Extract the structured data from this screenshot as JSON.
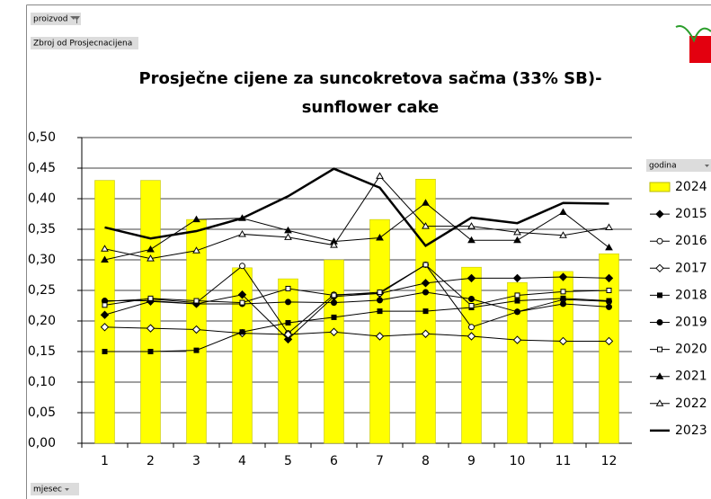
{
  "chart_data": {
    "type": "combo",
    "filter_button": "proizvod",
    "value_field": "Zbroj od Prosjecnacijena",
    "title": [
      "Prosječne cijene za suncokretova sačma (33% SB)-",
      "sunflower cake"
    ],
    "legend_title": "godina",
    "axis_field": "mjesec",
    "categories": [
      "1",
      "2",
      "3",
      "4",
      "5",
      "6",
      "7",
      "8",
      "9",
      "10",
      "11",
      "12"
    ],
    "ylim": [
      0,
      0.5
    ],
    "yticks": [
      {
        "value": 0,
        "label": "0,00"
      },
      {
        "value": 0.05,
        "label": "0,05"
      },
      {
        "value": 0.1,
        "label": "0,10"
      },
      {
        "value": 0.15,
        "label": "0,15"
      },
      {
        "value": 0.2,
        "label": "0,20"
      },
      {
        "value": 0.25,
        "label": "0,25"
      },
      {
        "value": 0.3,
        "label": "0,30"
      },
      {
        "value": 0.35,
        "label": "0,35"
      },
      {
        "value": 0.4,
        "label": "0,40"
      },
      {
        "value": 0.45,
        "label": "0,45"
      },
      {
        "value": 0.5,
        "label": "0,50"
      }
    ],
    "grid": true,
    "legend": "right",
    "series": [
      {
        "name": "2024",
        "type": "bar",
        "color": "#ffff00",
        "values": [
          0.43,
          0.43,
          0.366,
          0.287,
          0.269,
          0.3,
          0.366,
          0.432,
          0.288,
          0.263,
          0.281,
          0.31
        ]
      },
      {
        "name": "2015",
        "type": "line",
        "color": "#000000",
        "marker": "diamond",
        "filled": true,
        "values": [
          0.21,
          0.232,
          0.228,
          0.243,
          0.17,
          0.24,
          0.245,
          0.262,
          0.27,
          0.27,
          0.272,
          0.27
        ]
      },
      {
        "name": "2016",
        "type": "line",
        "color": "#000000",
        "marker": "circle",
        "filled": false,
        "values": [
          0.232,
          0.236,
          0.23,
          0.29,
          0.18,
          0.243,
          0.245,
          0.292,
          0.19,
          0.215,
          0.235,
          0.232
        ]
      },
      {
        "name": "2017",
        "type": "line",
        "color": "#000000",
        "marker": "diamond",
        "filled": false,
        "values": [
          0.19,
          0.188,
          0.186,
          0.18,
          0.178,
          0.182,
          0.175,
          0.179,
          0.175,
          0.169,
          0.167,
          0.167
        ]
      },
      {
        "name": "2018",
        "type": "line",
        "color": "#000000",
        "marker": "square",
        "filled": true,
        "values": [
          0.15,
          0.15,
          0.152,
          0.182,
          0.197,
          0.206,
          0.216,
          0.216,
          0.222,
          0.233,
          0.237,
          0.233
        ]
      },
      {
        "name": "2019",
        "type": "line",
        "color": "#000000",
        "marker": "circle",
        "filled": true,
        "values": [
          0.233,
          0.233,
          0.228,
          0.228,
          0.231,
          0.23,
          0.234,
          0.247,
          0.236,
          0.215,
          0.228,
          0.223
        ]
      },
      {
        "name": "2020",
        "type": "line",
        "color": "#000000",
        "marker": "square",
        "filled": false,
        "values": [
          0.226,
          0.237,
          0.233,
          0.23,
          0.253,
          0.242,
          0.247,
          0.292,
          0.225,
          0.242,
          0.248,
          0.25
        ]
      },
      {
        "name": "2021",
        "type": "line",
        "color": "#000000",
        "marker": "triangle",
        "filled": true,
        "values": [
          0.3,
          0.317,
          0.366,
          0.368,
          0.348,
          0.33,
          0.336,
          0.393,
          0.332,
          0.332,
          0.378,
          0.32
        ]
      },
      {
        "name": "2022",
        "type": "line",
        "color": "#000000",
        "marker": "triangle",
        "filled": false,
        "values": [
          0.318,
          0.302,
          0.315,
          0.342,
          0.337,
          0.324,
          0.437,
          0.355,
          0.355,
          0.345,
          0.34,
          0.353
        ]
      },
      {
        "name": "2023",
        "type": "line",
        "color": "#000000",
        "marker": "none",
        "thick": true,
        "values": [
          0.353,
          0.335,
          0.347,
          0.368,
          0.404,
          0.449,
          0.418,
          0.323,
          0.369,
          0.36,
          0.393,
          0.392
        ]
      }
    ]
  }
}
